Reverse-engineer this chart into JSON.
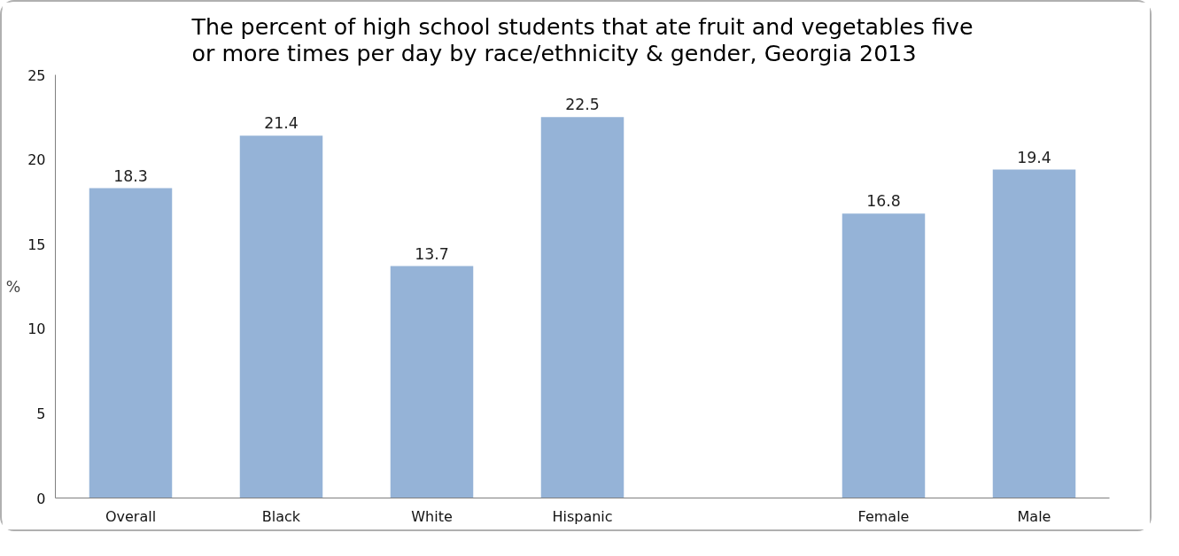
{
  "chart_data": {
    "type": "bar",
    "title": "The percent of high school students that ate fruit and vegetables five or more times per day by race/ethnicity & gender, Georgia 2013",
    "ylabel": "%",
    "categories": [
      "Overall",
      "Black",
      "White",
      "Hispanic",
      null,
      "Female",
      "Male"
    ],
    "values": [
      18.3,
      21.4,
      13.7,
      22.5,
      null,
      16.8,
      19.4
    ],
    "color": "#95b3d7",
    "ylim": [
      0,
      25
    ],
    "yticks": [
      0,
      5,
      10,
      15,
      20,
      25
    ],
    "data_labels": true,
    "grid": false
  }
}
